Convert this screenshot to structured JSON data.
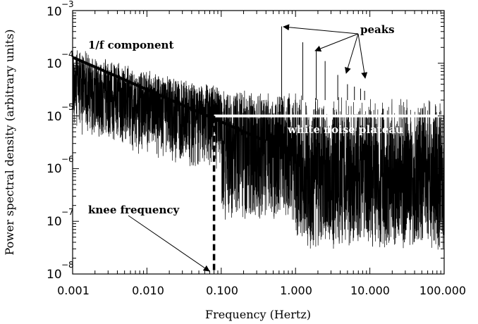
{
  "chart_data": {
    "type": "line",
    "title": "",
    "xlabel": "Frequency (Hertz)",
    "ylabel": "Power spectral density (arbitrary units)",
    "xscale": "log",
    "yscale": "log",
    "xlim": [
      0.001,
      100
    ],
    "ylim": [
      1e-08,
      0.001
    ],
    "x_tick_labels": [
      "0.001",
      "0.010",
      "0.100",
      "1.000",
      "10.000",
      "100.000"
    ],
    "x_tick_values": [
      0.001,
      0.01,
      0.1,
      1,
      10,
      100
    ],
    "y_ticks": [
      {
        "base": "10",
        "exp": "−8",
        "value": 1e-08
      },
      {
        "base": "10",
        "exp": "−7",
        "value": 1e-07
      },
      {
        "base": "10",
        "exp": "−6",
        "value": 1e-06
      },
      {
        "base": "10",
        "exp": "−5",
        "value": 1e-05
      },
      {
        "base": "10",
        "exp": "−4",
        "value": 0.0001
      },
      {
        "base": "10",
        "exp": "−3",
        "value": 0.001
      }
    ],
    "series": [
      {
        "name": "power spectrum",
        "description_values": {
          "white_noise_level": 1e-05,
          "upper_envelope": 2.5e-05,
          "lower_envelope": 1e-07
        }
      },
      {
        "name": "1/f component",
        "x": [
          0.001,
          0.4
        ],
        "y": [
          0.00013,
          3.3e-06
        ]
      },
      {
        "name": "white noise plateau",
        "x": [
          0.08,
          100
        ],
        "y": [
          1e-05,
          1e-05
        ]
      },
      {
        "name": "knee frequency",
        "x": [
          0.08,
          0.08
        ],
        "y": [
          1e-08,
          1e-05
        ]
      }
    ],
    "peaks": [
      {
        "x": 0.65,
        "y": 0.0005
      },
      {
        "x": 1.25,
        "y": 0.00025
      },
      {
        "x": 1.9,
        "y": 0.00017
      },
      {
        "x": 2.5,
        "y": 0.00011
      },
      {
        "x": 3.7,
        "y": 6e-05
      },
      {
        "x": 5.0,
        "y": 4e-05
      },
      {
        "x": 6.2,
        "y": 3.6e-05
      },
      {
        "x": 7.5,
        "y": 3.3e-05
      },
      {
        "x": 8.5,
        "y": 3e-05
      }
    ],
    "annotations": {
      "one_over_f": "1/f component",
      "peaks": "peaks",
      "white_noise": "white noise plateau",
      "knee": "knee frequency"
    }
  }
}
